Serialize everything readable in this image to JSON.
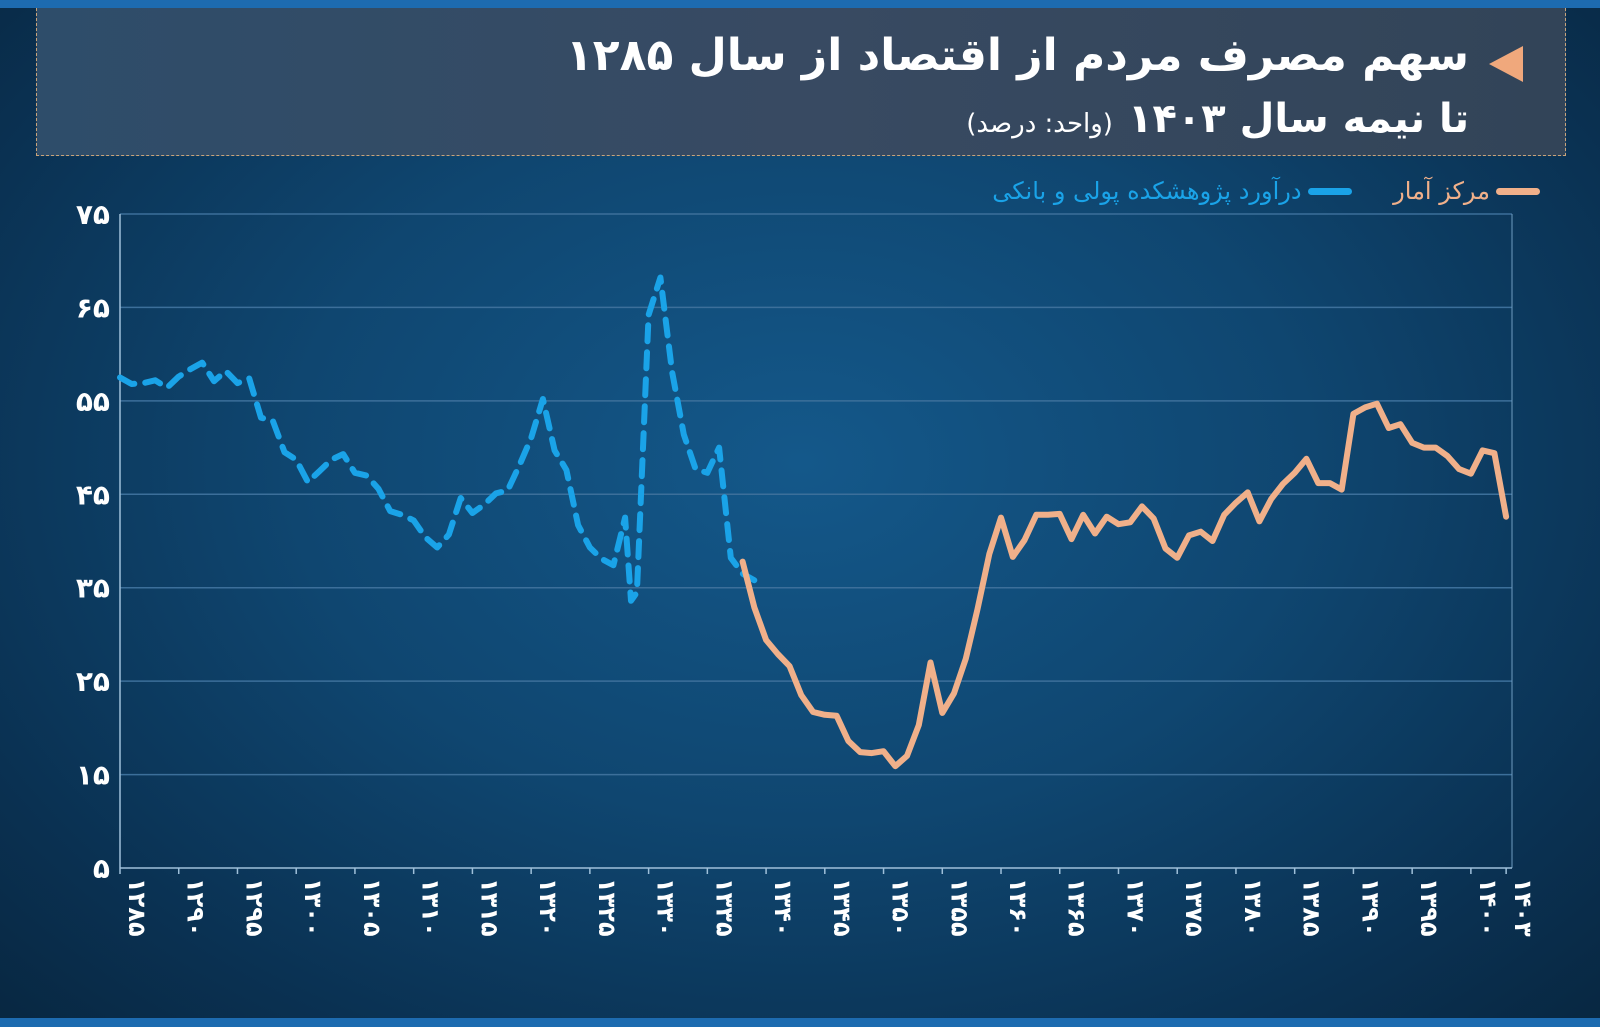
{
  "title": {
    "line1": "سهم مصرف مردم از اقتصاد از سال ۱۲۸۵",
    "line2": "تا نیمه سال ۱۴۰۳",
    "unit": "(واحد: درصد)"
  },
  "legend": [
    {
      "label": "مرکز آمار",
      "color": "#f0b08a",
      "icon": "line-swatch"
    },
    {
      "label": "درآورد پژوهشکده پولی و بانکی",
      "color": "#1aa3e8",
      "icon": "dashed-line-swatch"
    }
  ],
  "chart_data": {
    "type": "line",
    "x_range": [
      1285,
      1403.5
    ],
    "ylim": [
      5,
      75
    ],
    "yticks": [
      75,
      65,
      55,
      45,
      35,
      25,
      15,
      5
    ],
    "ytick_labels": [
      "۷۵",
      "۶۵",
      "۵۵",
      "۴۵",
      "۳۵",
      "۲۵",
      "۱۵",
      "۵"
    ],
    "xticks": [
      1285,
      1290,
      1295,
      1300,
      1305,
      1310,
      1315,
      1320,
      1325,
      1330,
      1335,
      1340,
      1345,
      1350,
      1355,
      1360,
      1365,
      1370,
      1375,
      1380,
      1385,
      1390,
      1395,
      1400,
      1403
    ],
    "xtick_labels": [
      "۱۲۸۵",
      "۱۲۹۰",
      "۱۲۹۵",
      "۱۳۰۰",
      "۱۳۰۵",
      "۱۳۱۰",
      "۱۳۱۵",
      "۱۳۲۰",
      "۱۳۲۵",
      "۱۳۳۰",
      "۱۳۳۵",
      "۱۳۴۰",
      "۱۳۴۵",
      "۱۳۵۰",
      "۱۳۵۵",
      "۱۳۶۰",
      "۱۳۶۵",
      "۱۳۷۰",
      "۱۳۷۵",
      "۱۳۸۰",
      "۱۳۸۵",
      "۱۳۹۰",
      "۱۳۹۵",
      "۱۴۰۰",
      "۱۴۰۳"
    ],
    "grid": true,
    "legend_position": "top-right",
    "series": [
      {
        "name": "درآورد پژوهشکده پولی و بانکی",
        "color": "#1aa3e8",
        "style": "dashed",
        "x": [
          1285,
          1286,
          1287,
          1288,
          1289,
          1290,
          1291,
          1292,
          1293,
          1294,
          1295,
          1296,
          1297,
          1298,
          1299,
          1300,
          1301,
          1302,
          1303,
          1304,
          1305,
          1306,
          1307,
          1308,
          1309,
          1310,
          1311,
          1312,
          1313,
          1314,
          1315,
          1316,
          1317,
          1318,
          1319,
          1320,
          1321,
          1322,
          1323,
          1324,
          1325,
          1326,
          1327,
          1328,
          1328.5,
          1329,
          1330,
          1331,
          1332,
          1333,
          1334,
          1335,
          1336,
          1337,
          1338,
          1339
        ],
        "y": [
          57.5,
          56.8,
          56.9,
          57.2,
          56.4,
          57.6,
          58.4,
          59.1,
          57.1,
          58.2,
          56.9,
          57.4,
          53.2,
          52.9,
          49.5,
          48.7,
          46.3,
          47.5,
          48.7,
          49.3,
          47.3,
          47.0,
          45.6,
          43.2,
          42.8,
          42.2,
          40.4,
          39.3,
          40.7,
          44.6,
          43.0,
          43.9,
          45.1,
          45.4,
          48.1,
          51.0,
          55.2,
          49.7,
          47.6,
          41.7,
          39.3,
          38.1,
          37.4,
          42.5,
          33.6,
          34.5,
          64.2,
          68.2,
          58.1,
          51.4,
          47.7,
          47.3,
          50.0,
          38.2,
          36.5,
          35.8
        ]
      },
      {
        "name": "مرکز آمار",
        "color": "#f0b08a",
        "style": "solid",
        "x": [
          1338,
          1339,
          1340,
          1341,
          1342,
          1343,
          1344,
          1345,
          1346,
          1347,
          1348,
          1349,
          1350,
          1351,
          1352,
          1353,
          1354,
          1355,
          1356,
          1357,
          1358,
          1359,
          1360,
          1361,
          1362,
          1363,
          1364,
          1365,
          1366,
          1367,
          1368,
          1369,
          1370,
          1371,
          1372,
          1373,
          1374,
          1375,
          1376,
          1377,
          1378,
          1379,
          1380,
          1381,
          1382,
          1383,
          1384,
          1385,
          1386,
          1387,
          1388,
          1389,
          1390,
          1391,
          1392,
          1393,
          1394,
          1395,
          1396,
          1397,
          1398,
          1399,
          1400,
          1401,
          1402,
          1403
        ],
        "y": [
          37.8,
          32.9,
          29.4,
          27.9,
          26.6,
          23.5,
          21.7,
          21.4,
          21.3,
          18.6,
          17.4,
          17.3,
          17.5,
          15.9,
          17.0,
          20.3,
          27.0,
          21.6,
          23.7,
          27.4,
          32.7,
          38.6,
          42.5,
          38.3,
          40.1,
          42.8,
          42.8,
          42.9,
          40.2,
          42.8,
          40.8,
          42.6,
          41.8,
          42.0,
          43.7,
          42.4,
          39.2,
          38.2,
          40.6,
          41.0,
          40.0,
          42.8,
          44.1,
          45.2,
          42.1,
          44.5,
          46.1,
          47.3,
          48.8,
          46.2,
          46.2,
          45.5,
          53.6,
          54.3,
          54.7,
          52.1,
          52.5,
          50.5,
          50.0,
          50.0,
          49.1,
          47.7,
          47.2,
          49.7,
          49.4,
          42.6
        ]
      }
    ]
  }
}
